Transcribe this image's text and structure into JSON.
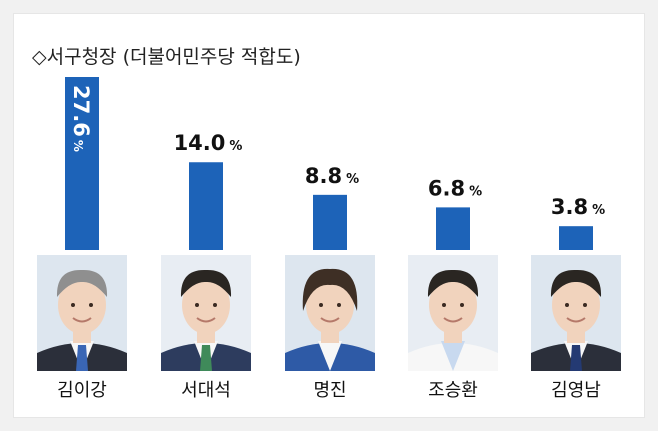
{
  "title": "◇서구청장 (더불어민주당 적합도)",
  "chart_data": {
    "type": "bar",
    "title": "◇서구청장 (더불어민주당 적합도)",
    "categories": [
      "김이강",
      "서대석",
      "명진",
      "조승환",
      "김영남"
    ],
    "values": [
      27.6,
      14.0,
      8.8,
      6.8,
      3.8
    ],
    "value_labels": [
      "27.6",
      "14.0",
      "8.8",
      "6.8",
      "3.8"
    ],
    "unit": "%",
    "ylim": [
      0,
      27.6
    ],
    "grid": false,
    "bar_color": "#1d63b8",
    "first_label_inside_vertical": true
  },
  "photos": [
    {
      "icon": "candidate-photo"
    },
    {
      "icon": "candidate-photo"
    },
    {
      "icon": "candidate-photo"
    },
    {
      "icon": "candidate-photo"
    },
    {
      "icon": "candidate-photo"
    }
  ]
}
